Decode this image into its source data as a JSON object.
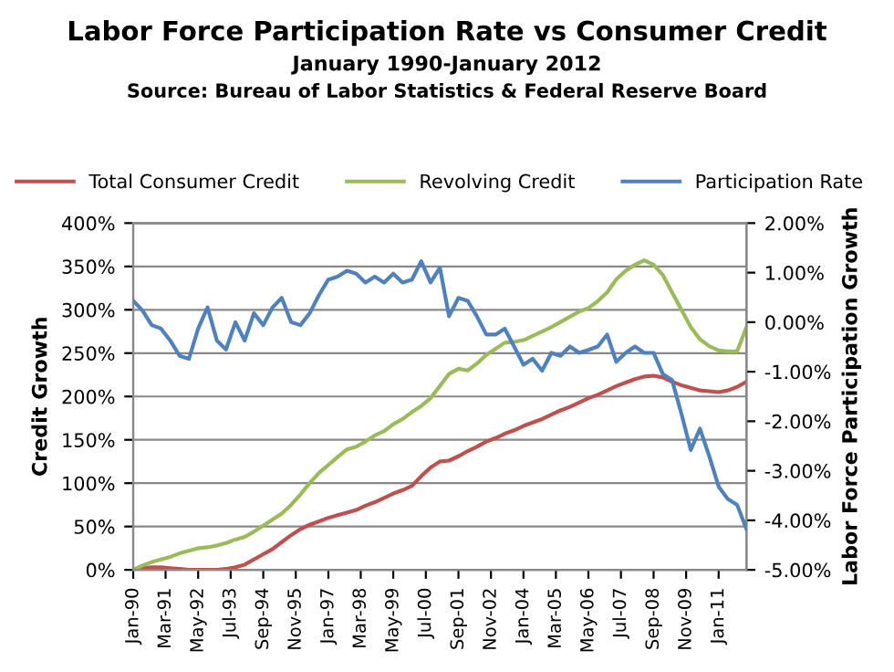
{
  "chart_data": {
    "type": "line",
    "title": "Labor Force Participation Rate vs Consumer Credit",
    "subtitle": "January 1990-January 2012",
    "annotations": [
      "Source: Bureau of Labor Statistics & Federal Reserve Board"
    ],
    "ylabel": "Credit Growth",
    "y2label": "Labor Force Participation Growth",
    "x": [
      "1990-01",
      "1990-05",
      "1990-09",
      "1991-01",
      "1991-05",
      "1991-09",
      "1992-01",
      "1992-05",
      "1992-09",
      "1993-01",
      "1993-05",
      "1993-09",
      "1994-01",
      "1994-05",
      "1994-09",
      "1995-01",
      "1995-05",
      "1995-09",
      "1996-01",
      "1996-05",
      "1996-09",
      "1997-01",
      "1997-05",
      "1997-09",
      "1998-01",
      "1998-05",
      "1998-09",
      "1999-01",
      "1999-05",
      "1999-09",
      "2000-01",
      "2000-05",
      "2000-09",
      "2001-01",
      "2001-05",
      "2001-09",
      "2002-01",
      "2002-05",
      "2002-09",
      "2003-01",
      "2003-05",
      "2003-09",
      "2004-01",
      "2004-05",
      "2004-09",
      "2005-01",
      "2005-05",
      "2005-09",
      "2006-01",
      "2006-05",
      "2006-09",
      "2007-01",
      "2007-05",
      "2007-09",
      "2008-01",
      "2008-05",
      "2008-09",
      "2009-01",
      "2009-05",
      "2009-09",
      "2010-01",
      "2010-05",
      "2010-09",
      "2011-01",
      "2011-05",
      "2011-09",
      "2012-01"
    ],
    "series": [
      {
        "name": "Total Consumer Credit",
        "color": "#c0504d",
        "values": [
          0,
          2,
          3,
          3,
          2,
          1,
          0,
          0,
          0,
          0,
          1,
          3,
          6,
          12,
          18,
          24,
          32,
          40,
          47,
          52,
          56,
          60,
          63,
          66,
          69,
          74,
          78,
          83,
          88,
          92,
          97,
          108,
          118,
          125,
          126,
          131,
          137,
          142,
          148,
          152,
          157,
          161,
          166,
          170,
          174,
          179,
          184,
          188,
          193,
          198,
          202,
          207,
          212,
          216,
          220,
          223,
          224,
          222,
          217,
          213,
          210,
          207,
          206,
          205,
          207,
          211,
          217
        ]
      },
      {
        "name": "Revolving Credit",
        "color": "#9bbb59",
        "values": [
          0,
          5,
          9,
          12,
          15,
          19,
          22,
          25,
          26,
          28,
          31,
          35,
          38,
          44,
          51,
          58,
          65,
          75,
          87,
          100,
          112,
          121,
          130,
          139,
          142,
          148,
          155,
          160,
          168,
          174,
          182,
          189,
          198,
          212,
          226,
          232,
          230,
          238,
          248,
          255,
          262,
          263,
          265,
          270,
          275,
          280,
          286,
          292,
          298,
          302,
          310,
          320,
          335,
          345,
          352,
          357,
          352,
          340,
          320,
          300,
          280,
          266,
          258,
          253,
          252,
          252,
          280
        ]
      },
      {
        "name": "Participation Rate",
        "color": "#4f81bd",
        "axis": "y2",
        "values": [
          0.43,
          0.24,
          -0.06,
          -0.13,
          -0.37,
          -0.68,
          -0.74,
          -0.13,
          0.3,
          -0.37,
          -0.55,
          0,
          -0.37,
          0.18,
          -0.06,
          0.3,
          0.49,
          0,
          -0.06,
          0.18,
          0.55,
          0.86,
          0.92,
          1.04,
          0.98,
          0.8,
          0.92,
          0.8,
          0.98,
          0.8,
          0.86,
          1.23,
          0.8,
          1.1,
          0.12,
          0.49,
          0.43,
          0.12,
          -0.25,
          -0.25,
          -0.13,
          -0.49,
          -0.86,
          -0.74,
          -0.98,
          -0.62,
          -0.68,
          -0.49,
          -0.62,
          -0.56,
          -0.49,
          -0.25,
          -0.8,
          -0.62,
          -0.49,
          -0.62,
          -0.62,
          -1.05,
          -1.17,
          -1.85,
          -2.58,
          -2.15,
          -2.71,
          -3.32,
          -3.57,
          -3.69,
          -4.18
        ]
      }
    ],
    "xlim": [
      "1990-01",
      "2012-01"
    ],
    "xticks": [
      {
        "value": "1990-01",
        "label": "Jan-90"
      },
      {
        "value": "1991-03",
        "label": "Mar-91"
      },
      {
        "value": "1992-05",
        "label": "May-92"
      },
      {
        "value": "1993-07",
        "label": "Jul-93"
      },
      {
        "value": "1994-09",
        "label": "Sep-94"
      },
      {
        "value": "1995-11",
        "label": "Nov-95"
      },
      {
        "value": "1997-01",
        "label": "Jan-97"
      },
      {
        "value": "1998-03",
        "label": "Mar-98"
      },
      {
        "value": "1999-05",
        "label": "May-99"
      },
      {
        "value": "2000-07",
        "label": "Jul-00"
      },
      {
        "value": "2001-09",
        "label": "Sep-01"
      },
      {
        "value": "2002-11",
        "label": "Nov-02"
      },
      {
        "value": "2004-01",
        "label": "Jan-04"
      },
      {
        "value": "2005-03",
        "label": "Mar-05"
      },
      {
        "value": "2006-05",
        "label": "May-06"
      },
      {
        "value": "2007-07",
        "label": "Jul-07"
      },
      {
        "value": "2008-09",
        "label": "Sep-08"
      },
      {
        "value": "2009-11",
        "label": "Nov-09"
      },
      {
        "value": "2011-01",
        "label": "Jan-11"
      }
    ],
    "ylim": [
      0,
      400
    ],
    "yticks": [
      {
        "value": 0,
        "label": "0%"
      },
      {
        "value": 50,
        "label": "50%"
      },
      {
        "value": 100,
        "label": "100%"
      },
      {
        "value": 150,
        "label": "150%"
      },
      {
        "value": 200,
        "label": "200%"
      },
      {
        "value": 250,
        "label": "250%"
      },
      {
        "value": 300,
        "label": "300%"
      },
      {
        "value": 350,
        "label": "350%"
      },
      {
        "value": 400,
        "label": "400%"
      }
    ],
    "y2lim": [
      -5,
      2
    ],
    "y2ticks": [
      {
        "value": -5,
        "label": "-5.00%"
      },
      {
        "value": -4,
        "label": "-4.00%"
      },
      {
        "value": -3,
        "label": "-3.00%"
      },
      {
        "value": -2,
        "label": "-2.00%"
      },
      {
        "value": -1,
        "label": "-1.00%"
      },
      {
        "value": 0,
        "label": "0.00%"
      },
      {
        "value": 1,
        "label": "1.00%"
      },
      {
        "value": 2,
        "label": "2.00%"
      }
    ],
    "grid": "y",
    "legend": "top",
    "marker": "none",
    "line_style": "solid"
  }
}
